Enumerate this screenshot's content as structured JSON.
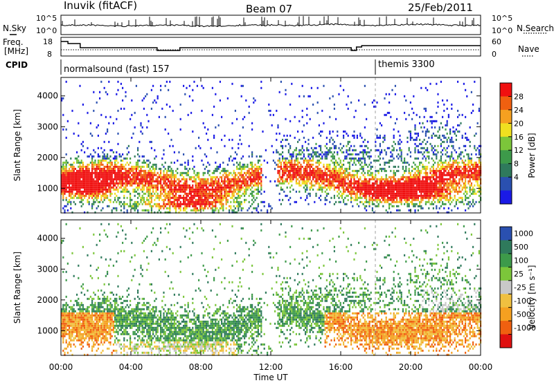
{
  "header": {
    "station": "Inuvik (fitACF)",
    "beam": "Beam 07",
    "date": "25/Feb/2011"
  },
  "sky_panel": {
    "left_label": "N.Sky",
    "right_label": "N.Search",
    "left_ticks": [
      "10^5",
      "10^0"
    ],
    "right_ticks": [
      "10^5",
      "10^0"
    ]
  },
  "freq_panel": {
    "left_label_1": "Freq.",
    "left_label_2": "[MHz]",
    "right_label": "Nave",
    "left_ticks": [
      "18",
      "8"
    ],
    "right_ticks": [
      "60",
      "0"
    ]
  },
  "cpid_panel": {
    "label": "CPID",
    "segments": [
      {
        "text": "normalsound (fast) 157",
        "start_hour": 0
      },
      {
        "text": "themis 3300",
        "start_hour": 18
      }
    ]
  },
  "colors": {
    "power": [
      "#1a1ae6",
      "#2a50b0",
      "#2f7a5c",
      "#3d9a4a",
      "#7cc63a",
      "#f0e020",
      "#f5a020",
      "#f06010",
      "#f01010"
    ],
    "velocity": [
      "#e01010",
      "#f06010",
      "#f5a020",
      "#f0c040",
      "#c8c8c8",
      "#7cc63a",
      "#3d9a4a",
      "#2f7a5c",
      "#2a50b0"
    ]
  },
  "chart_data": [
    {
      "type": "heatmap",
      "name": "power_panel",
      "xlabel": "",
      "ylabel": "Slant Range [km]",
      "xlim": [
        0,
        24
      ],
      "ylim": [
        200,
        4600
      ],
      "yticks": [
        "1000",
        "2000",
        "3000",
        "4000"
      ],
      "colorbar": {
        "label": "Power [dB]",
        "tick_labels": [
          "28",
          "24",
          "20",
          "16",
          "12",
          "8",
          "4"
        ],
        "range": [
          0,
          32
        ]
      }
    },
    {
      "type": "heatmap",
      "name": "velocity_panel",
      "xlabel": "Time UT",
      "ylabel": "Slant Range [km]",
      "xlim": [
        0,
        24
      ],
      "ylim": [
        200,
        4600
      ],
      "yticks": [
        "1000",
        "2000",
        "3000",
        "4000"
      ],
      "xticks": [
        "00:00",
        "04:00",
        "08:00",
        "12:00",
        "16:00",
        "20:00",
        "00:00"
      ],
      "colorbar": {
        "label": "Velocity [m s⁻¹]",
        "tick_labels": [
          "1000",
          "500",
          "100",
          "25",
          "-25",
          "-100",
          "-500",
          "-1000"
        ]
      }
    }
  ]
}
